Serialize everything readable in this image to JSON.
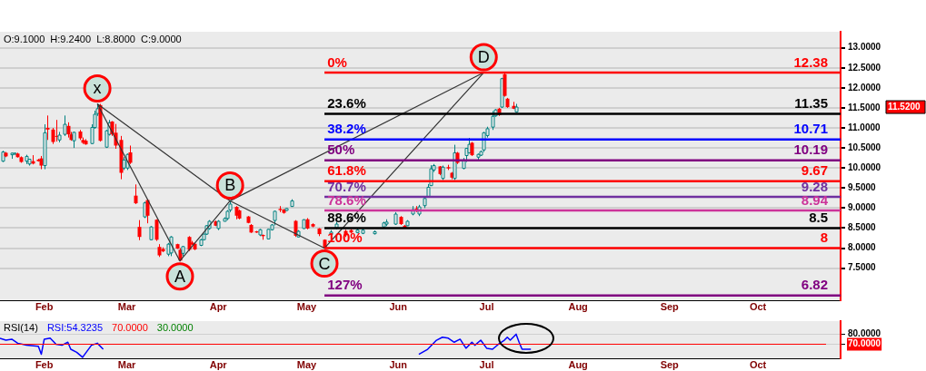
{
  "chart_data": [
    {
      "type": "candlestick",
      "x": [
        "--01-18",
        "--01-19",
        "--01-21",
        "--01-22",
        "--01-23",
        "--01-24",
        "--01-26",
        "--01-27",
        "--01-28",
        "--01-30",
        "--01-31",
        "--02-01",
        "--02-02",
        "--02-04",
        "--02-05",
        "--02-06",
        "--02-08",
        "--02-09",
        "--02-10",
        "--02-11",
        "--02-13",
        "--02-14",
        "--02-15",
        "--02-17",
        "--02-18",
        "--02-19",
        "--02-20",
        "--02-22",
        "--02-23",
        "--02-24",
        "--02-25",
        "--02-27",
        "--02-28",
        "--03-01",
        "--03-02",
        "--03-04",
        "--03-05",
        "--03-07",
        "--03-08",
        "--03-09",
        "--03-11",
        "--03-12",
        "--03-13",
        "--03-15",
        "--03-16",
        "--03-18",
        "--03-19",
        "--03-20",
        "--03-22",
        "--03-23",
        "--03-24",
        "--03-26",
        "--03-27",
        "--03-28",
        "--03-29",
        "--03-31",
        "--04-01",
        "--04-03",
        "--04-04",
        "--04-05",
        "--04-07",
        "--04-08",
        "--04-11",
        "--04-12",
        "--04-14",
        "--04-15",
        "--04-16",
        "--04-18",
        "--04-19",
        "--04-20",
        "--04-22",
        "--04-23",
        "--04-24",
        "--04-26",
        "--04-27",
        "--04-28",
        "--04-30",
        "--05-01",
        "--05-03",
        "--05-05",
        "--05-07",
        "--05-09",
        "--05-11",
        "--05-14",
        "--05-16",
        "--05-18",
        "--05-20",
        "--05-24",
        "--05-27",
        "--05-28",
        "--05-31",
        "--06-02",
        "--06-03",
        "--06-04",
        "--06-06",
        "--06-07",
        "--06-08",
        "--06-10",
        "--06-11",
        "--06-12",
        "--06-13",
        "--06-15",
        "--06-16",
        "--06-18",
        "--06-19",
        "--06-20",
        "--06-21",
        "--06-23",
        "--06-24",
        "--06-25",
        "--06-26",
        "--06-28",
        "--06-29",
        "--06-30",
        "--07-01",
        "--07-03",
        "--07-04",
        "--07-05",
        "--07-06",
        "--07-07",
        "--07-08",
        "--07-10",
        "--07-11"
      ],
      "ohlc": [
        [
          10.17,
          10.43,
          10.15,
          10.4
        ],
        [
          10.38,
          10.4,
          10.27,
          10.29
        ],
        [
          10.33,
          10.38,
          10.23,
          10.37
        ],
        [
          10.35,
          10.38,
          10.33,
          10.37
        ],
        [
          10.36,
          10.38,
          10.26,
          10.27
        ],
        [
          10.27,
          10.29,
          10.13,
          10.15
        ],
        [
          10.17,
          10.33,
          10.1,
          10.29
        ],
        [
          10.1,
          10.23,
          10.06,
          10.22
        ],
        [
          10.17,
          10.32,
          10.09,
          10.11
        ],
        [
          10.21,
          10.23,
          10.16,
          10.17
        ],
        [
          10.24,
          10.3,
          9.97,
          10.06
        ],
        [
          10.06,
          11.09,
          9.97,
          10.88
        ],
        [
          11.0,
          11.31,
          10.7,
          10.96
        ],
        [
          10.96,
          11.0,
          10.6,
          10.65
        ],
        [
          10.8,
          11.2,
          10.66,
          10.78
        ],
        [
          10.7,
          10.9,
          10.64,
          10.82
        ],
        [
          10.84,
          11.31,
          10.8,
          11.09
        ],
        [
          11.05,
          11.14,
          10.76,
          10.84
        ],
        [
          10.84,
          10.9,
          10.68,
          10.7
        ],
        [
          10.68,
          10.9,
          10.5,
          10.89
        ],
        [
          10.91,
          10.95,
          10.7,
          10.74
        ],
        [
          10.7,
          10.76,
          10.6,
          10.63
        ],
        [
          10.68,
          10.72,
          10.58,
          10.59
        ],
        [
          10.61,
          11.09,
          10.6,
          11.01
        ],
        [
          11.01,
          11.43,
          10.98,
          11.34
        ],
        [
          11.36,
          11.6,
          11.3,
          11.48
        ],
        [
          11.57,
          11.6,
          10.66,
          10.68
        ],
        [
          10.52,
          10.95,
          10.5,
          10.93
        ],
        [
          10.84,
          11.2,
          10.81,
          11.13
        ],
        [
          11.16,
          11.17,
          10.8,
          10.84
        ],
        [
          10.88,
          11.1,
          10.48,
          10.56
        ],
        [
          10.7,
          10.8,
          9.72,
          9.88
        ],
        [
          10.0,
          10.27,
          9.95,
          10.2
        ],
        [
          10.0,
          10.36,
          9.95,
          10.34
        ],
        [
          10.39,
          10.56,
          10.1,
          10.13
        ],
        [
          9.31,
          9.59,
          9.1,
          9.12
        ],
        [
          8.53,
          8.7,
          8.2,
          8.28
        ],
        [
          8.78,
          9.16,
          8.75,
          9.13
        ],
        [
          9.2,
          9.22,
          8.62,
          8.81
        ],
        [
          8.21,
          8.55,
          8.2,
          8.53
        ],
        [
          8.71,
          8.72,
          8.18,
          8.21
        ],
        [
          8.03,
          8.1,
          7.78,
          7.82
        ],
        [
          7.98,
          8.02,
          7.9,
          7.92
        ],
        [
          7.85,
          8.13,
          7.8,
          8.1
        ],
        [
          7.88,
          8.3,
          7.8,
          8.28
        ],
        [
          8.1,
          8.11,
          7.98,
          7.99
        ],
        [
          7.96,
          8.0,
          7.67,
          7.69
        ],
        [
          7.87,
          8.05,
          7.8,
          8.04
        ],
        [
          8.28,
          8.3,
          7.93,
          7.96
        ],
        [
          8.14,
          8.18,
          8.08,
          8.09
        ],
        [
          8.11,
          8.13,
          7.95,
          7.97
        ],
        [
          8.07,
          8.23,
          8.05,
          8.21
        ],
        [
          8.21,
          8.36,
          8.2,
          8.35
        ],
        [
          8.35,
          8.57,
          8.33,
          8.56
        ],
        [
          8.49,
          8.7,
          8.46,
          8.67
        ],
        [
          8.67,
          8.69,
          8.55,
          8.56
        ],
        [
          8.49,
          8.7,
          8.45,
          8.67
        ],
        [
          8.67,
          8.77,
          8.67,
          8.74
        ],
        [
          8.74,
          8.95,
          8.7,
          8.92
        ],
        [
          8.95,
          9.18,
          8.9,
          9.1
        ],
        [
          9.03,
          9.05,
          8.72,
          8.81
        ],
        [
          8.94,
          8.96,
          8.72,
          8.74
        ],
        [
          8.79,
          8.8,
          8.62,
          8.63
        ],
        [
          8.58,
          8.6,
          8.38,
          8.39
        ],
        [
          8.42,
          8.43,
          8.38,
          8.39
        ],
        [
          8.33,
          8.48,
          8.3,
          8.46
        ],
        [
          8.33,
          8.34,
          8.21,
          8.3
        ],
        [
          8.23,
          8.48,
          8.22,
          8.47
        ],
        [
          8.46,
          8.6,
          8.44,
          8.58
        ],
        [
          8.69,
          8.93,
          8.57,
          8.92
        ],
        [
          8.98,
          9.05,
          8.9,
          8.95
        ],
        [
          8.96,
          8.98,
          8.86,
          8.88
        ],
        [
          8.94,
          9.0,
          8.93,
          8.99
        ],
        [
          9.04,
          9.22,
          9.03,
          9.18
        ],
        [
          8.68,
          8.7,
          8.28,
          8.31
        ],
        [
          8.28,
          8.45,
          8.27,
          8.42
        ],
        [
          8.49,
          8.72,
          8.48,
          8.71
        ],
        [
          8.72,
          8.75,
          8.47,
          8.49
        ],
        [
          8.6,
          8.62,
          8.52,
          8.54
        ],
        [
          8.49,
          8.5,
          8.3,
          8.35
        ],
        [
          8.21,
          8.22,
          7.99,
          8.0
        ],
        [
          8.34,
          8.45,
          8.3,
          8.4
        ],
        [
          8.51,
          8.66,
          8.47,
          8.6
        ],
        [
          8.43,
          8.46,
          8.28,
          8.32
        ],
        [
          8.45,
          8.47,
          8.37,
          8.39
        ],
        [
          8.39,
          8.5,
          8.37,
          8.45
        ],
        [
          8.37,
          8.5,
          8.35,
          8.45
        ],
        [
          8.36,
          8.44,
          8.34,
          8.41
        ],
        [
          8.53,
          8.66,
          8.5,
          8.63
        ],
        [
          8.6,
          8.72,
          8.55,
          8.65
        ],
        [
          8.6,
          8.9,
          8.58,
          8.85
        ],
        [
          8.78,
          8.8,
          8.58,
          8.6
        ],
        [
          8.56,
          8.58,
          8.49,
          8.51
        ],
        [
          8.56,
          8.7,
          8.55,
          8.67
        ],
        [
          8.85,
          9.05,
          8.82,
          8.96
        ],
        [
          8.99,
          9.05,
          8.9,
          8.92
        ],
        [
          8.85,
          9.08,
          8.8,
          9.03
        ],
        [
          9.06,
          9.28,
          9.0,
          9.24
        ],
        [
          9.28,
          9.6,
          9.26,
          9.52
        ],
        [
          9.56,
          10.07,
          9.55,
          9.98
        ],
        [
          9.95,
          10.1,
          9.9,
          10.06
        ],
        [
          10.04,
          10.05,
          9.82,
          9.85
        ],
        [
          9.74,
          10.06,
          9.7,
          10.02
        ],
        [
          10.02,
          10.08,
          9.95,
          9.99
        ],
        [
          9.88,
          9.9,
          9.72,
          9.76
        ],
        [
          9.74,
          10.58,
          9.7,
          10.38
        ],
        [
          10.38,
          10.4,
          10.1,
          10.13
        ],
        [
          9.99,
          10.25,
          9.97,
          10.2
        ],
        [
          10.31,
          10.5,
          10.15,
          10.49
        ],
        [
          10.38,
          10.75,
          10.36,
          10.59
        ],
        [
          10.63,
          10.65,
          10.3,
          10.32
        ],
        [
          10.27,
          10.36,
          10.2,
          10.34
        ],
        [
          10.32,
          10.43,
          10.3,
          10.41
        ],
        [
          10.45,
          10.9,
          10.4,
          10.88
        ],
        [
          10.81,
          11.03,
          10.76,
          10.98
        ],
        [
          11.02,
          11.42,
          10.95,
          11.29
        ],
        [
          11.3,
          11.47,
          11.28,
          11.45
        ],
        [
          11.48,
          11.5,
          11.3,
          11.32
        ],
        [
          11.52,
          12.25,
          11.5,
          12.23
        ],
        [
          12.34,
          12.36,
          11.78,
          11.8
        ],
        [
          11.73,
          11.75,
          11.5,
          11.52
        ],
        [
          11.55,
          11.65,
          11.47,
          11.48
        ],
        [
          11.4,
          11.6,
          11.38,
          11.52
        ]
      ],
      "series": [
        {
          "type": "line",
          "color": "#333333",
          "x": [
            "--02-19",
            "--03-19",
            "--04-05",
            "--05-07",
            "--06-30"
          ],
          "values": [
            11.6,
            7.68,
            9.18,
            8.0,
            12.38
          ]
        },
        {
          "type": "line",
          "color": "#333333",
          "x": [
            "--02-19",
            "--04-05",
            "--06-30"
          ],
          "values": [
            11.6,
            9.18,
            12.38
          ]
        }
      ],
      "xlim": [
        "--01-17",
        "--10-29"
      ],
      "xticks": [
        {
          "value": "--02-01",
          "label": "Feb"
        },
        {
          "value": "--03-01",
          "label": "Mar"
        },
        {
          "value": "--04-01",
          "label": "Apr"
        },
        {
          "value": "--05-01",
          "label": "May"
        },
        {
          "value": "--06-01",
          "label": "Jun"
        },
        {
          "value": "--07-01",
          "label": "Jul"
        },
        {
          "value": "--08-01",
          "label": "Aug"
        },
        {
          "value": "--09-01",
          "label": "Sep"
        },
        {
          "value": "--10-01",
          "label": "Oct"
        }
      ],
      "ylim": [
        6.7,
        13.4
      ],
      "yticks": [
        {
          "value": 7.5,
          "label": "7.5000"
        },
        {
          "value": 8,
          "label": "8.0000"
        },
        {
          "value": 8.5,
          "label": "8.5000"
        },
        {
          "value": 9,
          "label": "9.0000"
        },
        {
          "value": 9.5,
          "label": "9.5000"
        },
        {
          "value": 10,
          "label": "10.0000"
        },
        {
          "value": 10.5,
          "label": "10.5000"
        },
        {
          "value": 11,
          "label": "11.0000"
        },
        {
          "value": 11.5,
          "label": "11.5000"
        },
        {
          "value": 12,
          "label": "12.0000"
        },
        {
          "value": 12.5,
          "label": "12.5000"
        },
        {
          "value": 13,
          "label": "13.0000"
        }
      ],
      "grid": "y",
      "ref_lines": [
        {
          "axis": "y",
          "value": 12.38,
          "label": "12.38",
          "color": "#ff0000"
        },
        {
          "axis": "y",
          "value": 11.35,
          "label": "11.35",
          "color": "#000000"
        },
        {
          "axis": "y",
          "value": 10.71,
          "label": "10.71",
          "color": "#0000ff"
        },
        {
          "axis": "y",
          "value": 10.19,
          "label": "10.19",
          "color": "#800080"
        },
        {
          "axis": "y",
          "value": 9.67,
          "label": "9.67",
          "color": "#ff0000"
        },
        {
          "axis": "y",
          "value": 9.28,
          "label": "9.28",
          "color": "#7030a0"
        },
        {
          "axis": "y",
          "value": 8.94,
          "label": "8.94",
          "color": "#cc3399"
        },
        {
          "axis": "y",
          "value": 8.5,
          "label": "8.5",
          "color": "#000000"
        },
        {
          "axis": "y",
          "value": 8,
          "label": "8",
          "color": "#ff0000"
        },
        {
          "axis": "y",
          "value": 6.82,
          "label": "6.82",
          "color": "#800080"
        }
      ],
      "annotations": [
        "O:9.1000  H:9.2400  L:8.8000  C:9.0000",
        {
          "text": "x",
          "x": "--02-19",
          "y": 11.6
        },
        {
          "text": "A",
          "x": "--03-19",
          "y": 7.68
        },
        {
          "text": "B",
          "x": "--04-05",
          "y": 9.18
        },
        {
          "text": "C",
          "x": "--05-07",
          "y": 8.0
        },
        {
          "text": "D",
          "x": "--06-30",
          "y": 12.38
        },
        {
          "text": "0%",
          "x": "--05-08",
          "y": 12.38
        },
        {
          "text": "23.6%",
          "x": "--05-08",
          "y": 11.35
        },
        {
          "text": "38.2%",
          "x": "--05-08",
          "y": 10.71
        },
        {
          "text": "50%",
          "x": "--05-08",
          "y": 10.19
        },
        {
          "text": "61.8%",
          "x": "--05-08",
          "y": 9.67
        },
        {
          "text": "70.7%",
          "x": "--05-08",
          "y": 9.28
        },
        {
          "text": "78.6%",
          "x": "--05-08",
          "y": 8.94
        },
        {
          "text": "88.6%",
          "x": "--05-08",
          "y": 8.5
        },
        {
          "text": "100%",
          "x": "--05-08",
          "y": 8
        },
        {
          "text": "127%",
          "x": "--05-08",
          "y": 6.82
        },
        "11.5200"
      ]
    },
    {
      "type": "line",
      "title": "RSI(14)",
      "series": [
        {
          "name": "RSI:54.3235",
          "color": "#0000ff",
          "x": [
            "--01-17",
            "--01-19",
            "--01-21",
            "--01-23",
            "--01-26",
            "--01-30",
            "--01-31",
            "--02-01",
            "--02-03",
            "--02-05",
            "--02-07",
            "--02-09",
            "--02-10",
            "--02-12",
            "--02-14",
            "--02-17",
            "--02-19",
            "--02-21",
            "--04-01",
            "--06-08",
            "--06-11",
            "--06-14",
            "--06-16",
            "--06-18",
            "--06-20",
            "--06-22",
            "--06-24",
            "--06-26",
            "--06-27",
            "--06-29",
            "--07-01",
            "--07-03",
            "--07-05",
            "--07-07",
            "--07-08",
            "--07-09",
            "--07-11",
            "--07-12",
            "--07-13",
            "--07-16"
          ],
          "values": [
            76,
            74,
            75,
            71,
            69,
            68,
            60,
            75,
            76,
            70,
            69,
            72,
            65,
            62,
            57,
            69,
            71,
            65,
            null,
            60,
            65,
            74,
            77,
            76,
            72,
            75,
            66,
            72,
            69,
            74,
            66,
            65,
            70,
            74,
            77,
            74,
            80,
            72,
            65,
            65
          ]
        }
      ],
      "xlim": [
        "--01-17",
        "--10-29"
      ],
      "xticks": [
        {
          "value": "--02-01",
          "label": "Feb"
        },
        {
          "value": "--03-01",
          "label": "Mar"
        },
        {
          "value": "--04-01",
          "label": "Apr"
        },
        {
          "value": "--05-01",
          "label": "May"
        },
        {
          "value": "--06-01",
          "label": "Jun"
        },
        {
          "value": "--07-01",
          "label": "Jul"
        },
        {
          "value": "--08-01",
          "label": "Aug"
        },
        {
          "value": "--09-01",
          "label": "Sep"
        },
        {
          "value": "--10-01",
          "label": "Oct"
        }
      ],
      "ylim": [
        56,
        93
      ],
      "yticks": [
        {
          "value": 70,
          "label": "70.0000"
        },
        {
          "value": 80,
          "label": "80.0000"
        }
      ],
      "grid": "y",
      "ref_lines": [
        {
          "axis": "y",
          "value": 70,
          "label": "70.0000",
          "color": "#ff0000"
        }
      ],
      "annotations": [
        "30.0000"
      ]
    }
  ]
}
